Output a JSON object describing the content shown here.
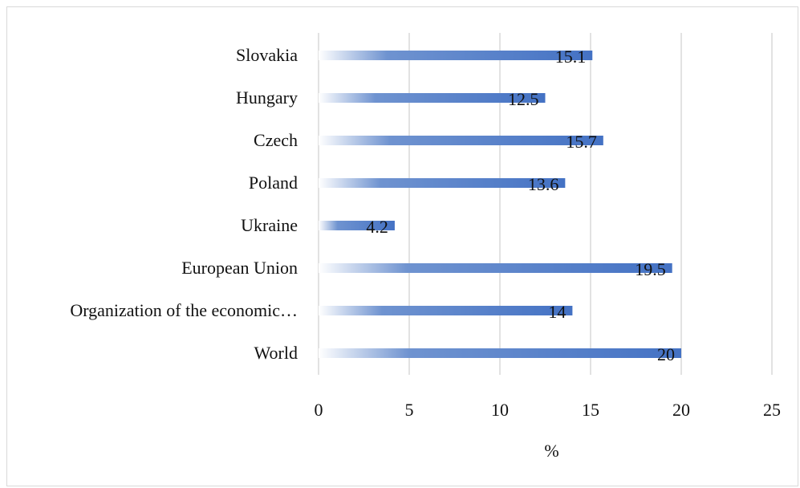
{
  "chart_data": {
    "type": "bar",
    "orientation": "horizontal",
    "categories": [
      "Slovakia",
      "Hungary",
      "Czech",
      "Poland",
      "Ukraine",
      "European Union",
      "Organization of the economic…",
      "World"
    ],
    "values": [
      15.1,
      12.5,
      15.7,
      13.6,
      4.2,
      19.5,
      14,
      20
    ],
    "data_labels": [
      "15.1",
      "12.5",
      "15.7",
      "13.6",
      "4.2",
      "19.5",
      "14",
      "20"
    ],
    "xlabel": "%",
    "ylabel": "",
    "xlim": [
      0,
      25
    ],
    "xticks": [
      0,
      5,
      10,
      15,
      20,
      25
    ],
    "xtick_labels": [
      "0",
      "5",
      "10",
      "15",
      "20",
      "25"
    ],
    "grid": true,
    "legend": "none",
    "bar_color": "#4472c4"
  }
}
